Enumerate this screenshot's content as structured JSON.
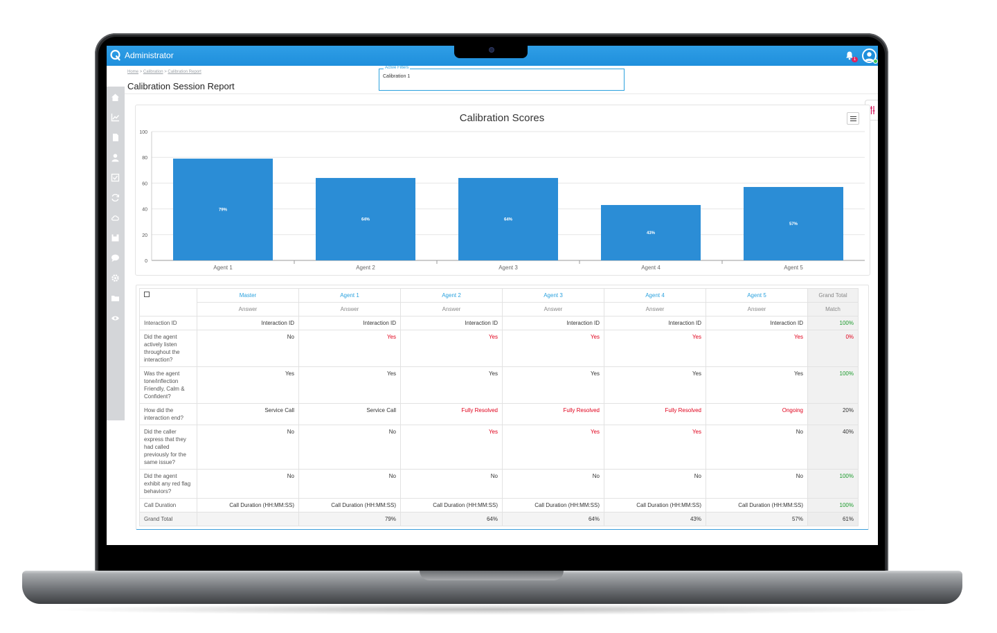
{
  "app": {
    "title": "Administrator",
    "notification_count": "1"
  },
  "breadcrumb": {
    "home": "Home",
    "sep1": ">",
    "calibration": "Calibration",
    "sep2": ">",
    "report": "Calibration Report"
  },
  "page_title": "Calibration Session Report",
  "filters": {
    "legend": "Active Filters",
    "value": "Calibration 1"
  },
  "sidebar_icons": [
    "home-icon",
    "chart-icon",
    "document-icon",
    "user-icon",
    "checkbox-icon",
    "sync-icon",
    "cloud-icon",
    "save-icon",
    "chat-icon",
    "gear-icon",
    "folder-icon",
    "eye-icon"
  ],
  "colors": {
    "accent": "#2aa1de",
    "bar": "#2b8dd6",
    "topbar": "#1f8fdc",
    "negative": "#e0001b",
    "positive": "#1a9a2b"
  },
  "chart_data": {
    "type": "bar",
    "title": "Calibration Scores",
    "categories": [
      "Agent 1",
      "Agent 2",
      "Agent 3",
      "Agent 4",
      "Agent 5"
    ],
    "values": [
      79,
      64,
      64,
      43,
      57
    ],
    "data_labels": [
      "79%",
      "64%",
      "64%",
      "43%",
      "57%"
    ],
    "ylim": [
      0,
      100
    ],
    "yticks": [
      0,
      20,
      40,
      60,
      80,
      100
    ],
    "grid": true,
    "legend": "none"
  },
  "table": {
    "columns": [
      {
        "name": "Master",
        "sub": "Answer"
      },
      {
        "name": "Agent 1",
        "sub": "Answer"
      },
      {
        "name": "Agent 2",
        "sub": "Answer"
      },
      {
        "name": "Agent 3",
        "sub": "Answer"
      },
      {
        "name": "Agent 4",
        "sub": "Answer"
      },
      {
        "name": "Agent 5",
        "sub": "Answer"
      },
      {
        "name": "Grand Total",
        "sub": "Match"
      }
    ],
    "rows": [
      {
        "question": "Interaction ID",
        "answers": [
          "Interaction ID",
          "Interaction ID",
          "Interaction ID",
          "Interaction ID",
          "Interaction ID",
          "Interaction ID"
        ],
        "match": "100%"
      },
      {
        "question": "Did the agent actively listen throughout the interaction?",
        "answers": [
          "No",
          "Yes",
          "Yes",
          "Yes",
          "Yes",
          "Yes"
        ],
        "match": "0%"
      },
      {
        "question": "Was the agent tone/inflection Friendly, Calm & Confident?",
        "answers": [
          "Yes",
          "Yes",
          "Yes",
          "Yes",
          "Yes",
          "Yes"
        ],
        "match": "100%"
      },
      {
        "question": "How did the interaction end?",
        "answers": [
          "Service Call",
          "Service Call",
          "Fully Resolved",
          "Fully Resolved",
          "Fully Resolved",
          "Ongoing"
        ],
        "match": "20%"
      },
      {
        "question": "Did the caller express that they had called previously for the same issue?",
        "answers": [
          "No",
          "No",
          "Yes",
          "Yes",
          "Yes",
          "No"
        ],
        "match": "40%"
      },
      {
        "question": "Did the agent exhibit any red flag behaviors?",
        "answers": [
          "No",
          "No",
          "No",
          "No",
          "No",
          "No"
        ],
        "match": "100%"
      },
      {
        "question": "Call Duration",
        "answers": [
          "Call Duration (HH:MM:SS)",
          "Call Duration (HH:MM:SS)",
          "Call Duration (HH:MM:SS)",
          "Call Duration (HH:MM:SS)",
          "Call Duration (HH:MM:SS)",
          "Call Duration (HH:MM:SS)"
        ],
        "match": "100%"
      }
    ],
    "grand_total": {
      "label": "Grand Total",
      "values": [
        "",
        "79%",
        "64%",
        "64%",
        "43%",
        "57%"
      ],
      "match": "61%"
    }
  }
}
